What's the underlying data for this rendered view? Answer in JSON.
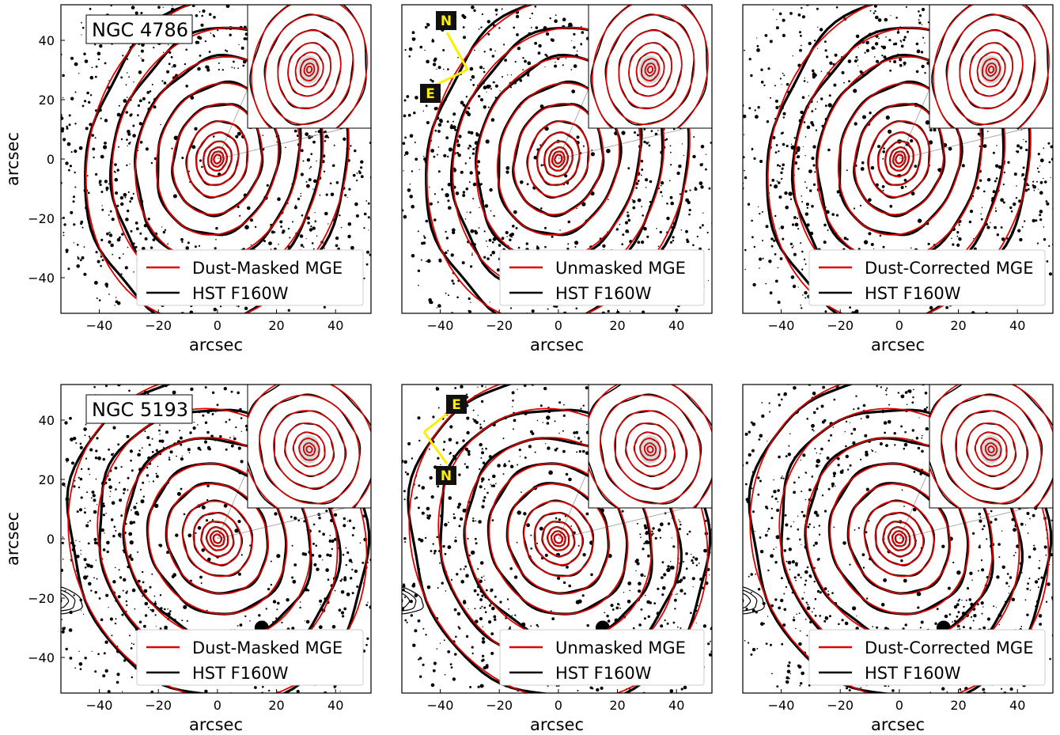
{
  "figure": {
    "colors": {
      "model": "#e00000",
      "data": "#000000",
      "arrow": "#ffee00",
      "label_bg": "#111111"
    }
  },
  "chart_data": [
    {
      "type": "contour",
      "row": 1,
      "col": 1,
      "galaxy_label": "NGC 4786",
      "xlabel": "arcsec",
      "ylabel": "arcsec",
      "xlim": [
        -53,
        52
      ],
      "ylim": [
        -52,
        52
      ],
      "xticks": [
        "−40",
        "−20",
        "0",
        "20",
        "40"
      ],
      "yticks": [
        "−40",
        "−20",
        "0",
        "20",
        "40"
      ],
      "legend": [
        "Dust-Masked MGE",
        "HST F160W"
      ],
      "legend_position": "lower-right",
      "inset": "top-right",
      "compass": null,
      "axis_ratio": 0.78,
      "pa_deg": 14,
      "contour_major_axes": [
        1.5,
        2.6,
        4,
        6,
        9,
        13,
        19,
        26,
        35,
        45,
        56
      ]
    },
    {
      "type": "contour",
      "row": 1,
      "col": 2,
      "galaxy_label": "",
      "xlabel": "arcsec",
      "ylabel": "",
      "xlim": [
        -53,
        52
      ],
      "ylim": [
        -52,
        52
      ],
      "xticks": [
        "−40",
        "−20",
        "0",
        "20",
        "40"
      ],
      "yticks": [],
      "legend": [
        "Unmasked MGE",
        "HST F160W"
      ],
      "legend_position": "lower-right",
      "inset": "top-right",
      "compass": {
        "labels": [
          "N",
          "E"
        ],
        "position": "upper-left"
      },
      "axis_ratio": 0.78,
      "pa_deg": 14,
      "contour_major_axes": [
        1.5,
        2.6,
        4,
        6,
        9,
        13,
        19,
        26,
        35,
        45,
        56
      ]
    },
    {
      "type": "contour",
      "row": 1,
      "col": 3,
      "galaxy_label": "",
      "xlabel": "arcsec",
      "ylabel": "",
      "xlim": [
        -53,
        52
      ],
      "ylim": [
        -52,
        52
      ],
      "xticks": [
        "−40",
        "−20",
        "0",
        "20",
        "40"
      ],
      "yticks": [],
      "legend": [
        "Dust-Corrected MGE",
        "HST F160W"
      ],
      "legend_position": "lower-right",
      "inset": "top-right",
      "compass": null,
      "axis_ratio": 0.78,
      "pa_deg": 14,
      "contour_major_axes": [
        1.5,
        2.6,
        4,
        6,
        9,
        13,
        19,
        26,
        35,
        45,
        56
      ]
    },
    {
      "type": "contour",
      "row": 2,
      "col": 1,
      "galaxy_label": "NGC 5193",
      "xlabel": "arcsec",
      "ylabel": "arcsec",
      "xlim": [
        -53,
        52
      ],
      "ylim": [
        -52,
        52
      ],
      "xticks": [
        "−40",
        "−20",
        "0",
        "20",
        "40"
      ],
      "yticks": [
        "−40",
        "−20",
        "0",
        "20",
        "40"
      ],
      "legend": [
        "Dust-Masked MGE",
        "HST F160W"
      ],
      "legend_position": "lower-right",
      "inset": "top-right",
      "compass": null,
      "axis_ratio": 0.88,
      "pa_deg": -25,
      "contour_major_axes": [
        1.5,
        2.6,
        4,
        6,
        9,
        13,
        19,
        26,
        35,
        45,
        56
      ]
    },
    {
      "type": "contour",
      "row": 2,
      "col": 2,
      "galaxy_label": "",
      "xlabel": "arcsec",
      "ylabel": "",
      "xlim": [
        -53,
        52
      ],
      "ylim": [
        -52,
        52
      ],
      "xticks": [
        "−40",
        "−20",
        "0",
        "20",
        "40"
      ],
      "yticks": [],
      "legend": [
        "Unmasked MGE",
        "HST F160W"
      ],
      "legend_position": "lower-right",
      "inset": "top-right",
      "compass": {
        "labels": [
          "N",
          "E"
        ],
        "position": "upper-left"
      },
      "axis_ratio": 0.88,
      "pa_deg": -25,
      "contour_major_axes": [
        1.5,
        2.6,
        4,
        6,
        9,
        13,
        19,
        26,
        35,
        45,
        56
      ]
    },
    {
      "type": "contour",
      "row": 2,
      "col": 3,
      "galaxy_label": "",
      "xlabel": "arcsec",
      "ylabel": "",
      "xlim": [
        -53,
        52
      ],
      "ylim": [
        -52,
        52
      ],
      "xticks": [
        "−40",
        "−20",
        "0",
        "20",
        "40"
      ],
      "yticks": [],
      "legend": [
        "Dust-Corrected MGE",
        "HST F160W"
      ],
      "legend_position": "lower-right",
      "inset": "top-right",
      "compass": null,
      "axis_ratio": 0.88,
      "pa_deg": -25,
      "contour_major_axes": [
        1.5,
        2.6,
        4,
        6,
        9,
        13,
        19,
        26,
        35,
        45,
        56
      ]
    }
  ]
}
